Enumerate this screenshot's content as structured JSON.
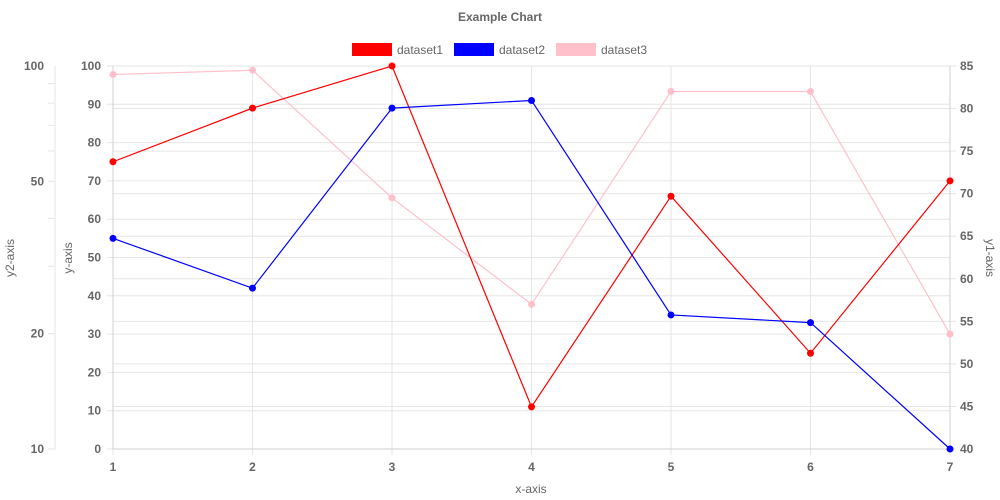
{
  "chart_data": {
    "type": "line",
    "title": "Example Chart",
    "xlabel": "x-axis",
    "x": [
      1,
      2,
      3,
      4,
      5,
      6,
      7
    ],
    "axes": {
      "y": {
        "label": "y-axis",
        "position": "left",
        "scale": "linear",
        "range": [
          0,
          100
        ],
        "ticks": [
          0,
          10,
          20,
          30,
          40,
          50,
          60,
          70,
          80,
          90,
          100
        ]
      },
      "y1": {
        "label": "y1-axis",
        "position": "right",
        "scale": "linear",
        "range": [
          40,
          85
        ],
        "ticks": [
          40,
          45,
          50,
          55,
          60,
          65,
          70,
          75,
          80,
          85
        ]
      },
      "y2": {
        "label": "y2-axis",
        "position": "far-left",
        "scale": "log",
        "range": [
          10,
          100
        ],
        "ticks": [
          10,
          20,
          50,
          100
        ]
      }
    },
    "series": [
      {
        "name": "dataset1",
        "color": "#ff0000",
        "axis": "y",
        "values": [
          75,
          89,
          100,
          11,
          66,
          25,
          70
        ]
      },
      {
        "name": "dataset2",
        "color": "#0000ff",
        "axis": "y",
        "values": [
          55,
          42,
          89,
          91,
          35,
          33,
          0
        ]
      },
      {
        "name": "dataset3",
        "color": "#ffc0cb",
        "axis": "y1",
        "values": [
          84,
          84.5,
          69.5,
          57,
          82,
          82,
          53.5
        ]
      }
    ],
    "grid": true,
    "legend_position": "top-center"
  }
}
